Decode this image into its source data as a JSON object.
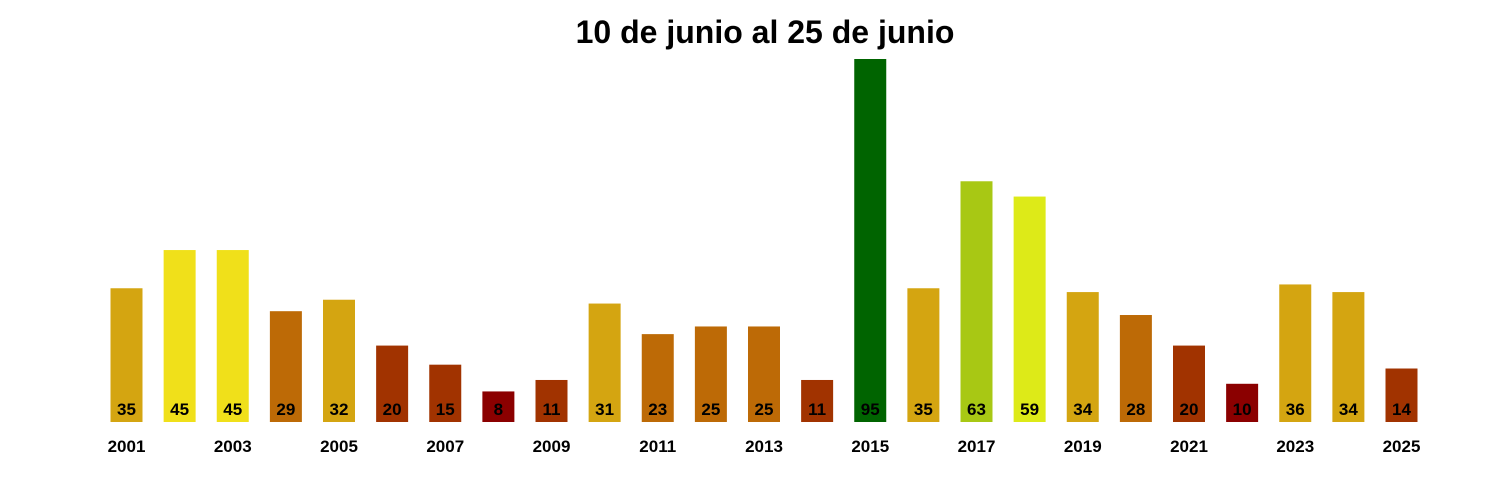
{
  "chart_data": {
    "type": "bar",
    "title": "10 de junio al 25 de junio",
    "xlabel": "",
    "ylabel": "",
    "ylim": [
      0,
      95
    ],
    "grid": false,
    "categories": [
      "2001",
      "2002",
      "2003",
      "2004",
      "2005",
      "2006",
      "2007",
      "2008",
      "2009",
      "2010",
      "2011",
      "2012",
      "2013",
      "2014",
      "2015",
      "2016",
      "2017",
      "2018",
      "2019",
      "2020",
      "2021",
      "2022",
      "2023",
      "2024",
      "2025"
    ],
    "values": [
      35,
      45,
      45,
      29,
      32,
      20,
      15,
      8,
      11,
      31,
      23,
      25,
      25,
      11,
      95,
      35,
      63,
      59,
      34,
      28,
      20,
      10,
      36,
      34,
      14
    ],
    "tick_labels": [
      "2001",
      "2003",
      "2005",
      "2007",
      "2009",
      "2011",
      "2013",
      "2015",
      "2017",
      "2019",
      "2021",
      "2023",
      "2025"
    ],
    "colors": [
      "#D4A511",
      "#F0E01A",
      "#F0E01A",
      "#BD6A06",
      "#D4A511",
      "#A13300",
      "#A13300",
      "#8B0000",
      "#A13300",
      "#D4A511",
      "#BD6A06",
      "#BD6A06",
      "#BD6A06",
      "#A13300",
      "#006400",
      "#D4A511",
      "#A8C814",
      "#DDEA18",
      "#D4A511",
      "#BD6A06",
      "#A13300",
      "#8B0000",
      "#D4A511",
      "#D4A511",
      "#A13300"
    ]
  }
}
